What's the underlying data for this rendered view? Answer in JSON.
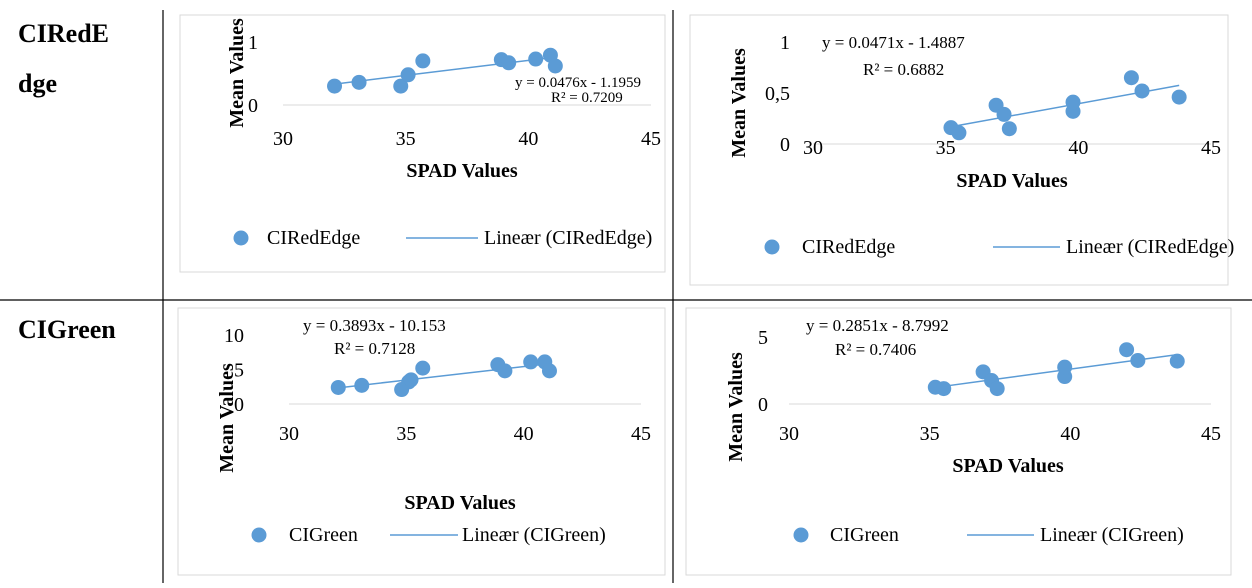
{
  "row_labels": [
    "CIRedE",
    "dge",
    "CIGreen"
  ],
  "colors": {
    "marker": "#5B9BD5",
    "trend": "#5B9BD5",
    "frame": "#d9d9d9",
    "rule": "#000000"
  },
  "chart_data": [
    {
      "type": "scatter",
      "xlabel": "SPAD Values",
      "ylabel": "Mean Values",
      "xlim": [
        30,
        45
      ],
      "ylim": [
        0,
        1
      ],
      "xticks": [
        "30",
        "35",
        "40",
        "45"
      ],
      "yticks": [
        "0",
        "1"
      ],
      "points": [
        [
          32.1,
          0.3
        ],
        [
          33.1,
          0.36
        ],
        [
          34.8,
          0.3
        ],
        [
          35.1,
          0.48
        ],
        [
          35.7,
          0.7
        ],
        [
          38.9,
          0.72
        ],
        [
          39.2,
          0.67
        ],
        [
          40.3,
          0.73
        ],
        [
          40.9,
          0.79
        ],
        [
          41.1,
          0.62
        ]
      ],
      "trend": {
        "slope": 0.0476,
        "intercept": -1.1959,
        "x_range": [
          32.1,
          41.1
        ]
      },
      "equation": "y = 0.0476x - 1.1959",
      "r2": "R² = 0.7209",
      "legend": {
        "marker_label": "CIRedEdge",
        "line_label": "Lineær (CIRedEdge)"
      }
    },
    {
      "type": "scatter",
      "xlabel": "SPAD Values",
      "ylabel": "Mean Values",
      "xlim": [
        30,
        45
      ],
      "ylim": [
        0,
        1
      ],
      "xticks": [
        "30",
        "35",
        "40",
        "45"
      ],
      "yticks": [
        "0",
        "0,5",
        "1"
      ],
      "points": [
        [
          35.2,
          0.16
        ],
        [
          35.5,
          0.11
        ],
        [
          36.9,
          0.38
        ],
        [
          37.2,
          0.29
        ],
        [
          37.4,
          0.15
        ],
        [
          39.8,
          0.32
        ],
        [
          39.8,
          0.41
        ],
        [
          42.0,
          0.65
        ],
        [
          42.4,
          0.52
        ],
        [
          43.8,
          0.46
        ]
      ],
      "trend": {
        "slope": 0.0471,
        "intercept": -1.4887,
        "x_range": [
          35.2,
          43.8
        ]
      },
      "equation": "y = 0.0471x - 1.4887",
      "r2": "R² = 0.6882",
      "legend": {
        "marker_label": "CIRedEdge",
        "line_label": "Lineær (CIRedEdge)"
      }
    },
    {
      "type": "scatter",
      "xlabel": "SPAD Values",
      "ylabel": "Mean Values",
      "xlim": [
        30,
        45
      ],
      "ylim": [
        0,
        10
      ],
      "xticks": [
        "30",
        "35",
        "40",
        "45"
      ],
      "yticks": [
        "0",
        "5",
        "10"
      ],
      "points": [
        [
          32.1,
          2.4
        ],
        [
          33.1,
          2.7
        ],
        [
          34.8,
          2.1
        ],
        [
          35.1,
          3.2
        ],
        [
          35.2,
          3.5
        ],
        [
          35.7,
          5.2
        ],
        [
          38.9,
          5.7
        ],
        [
          39.2,
          4.8
        ],
        [
          40.3,
          6.1
        ],
        [
          40.9,
          6.1
        ],
        [
          41.1,
          4.8
        ]
      ],
      "trend": {
        "slope": 0.3893,
        "intercept": -10.153,
        "x_range": [
          32.1,
          41.1
        ]
      },
      "equation": "y = 0.3893x - 10.153",
      "r2": "R² = 0.7128",
      "legend": {
        "marker_label": "CIGreen",
        "line_label": "Lineær (CIGreen)"
      }
    },
    {
      "type": "scatter",
      "xlabel": "SPAD Values",
      "ylabel": "Mean Values",
      "xlim": [
        30,
        45
      ],
      "ylim": [
        0,
        5
      ],
      "xticks": [
        "30",
        "35",
        "40",
        "45"
      ],
      "yticks": [
        "0",
        "5"
      ],
      "points": [
        [
          35.2,
          1.25
        ],
        [
          35.5,
          1.15
        ],
        [
          36.9,
          2.4
        ],
        [
          37.2,
          1.75
        ],
        [
          37.4,
          1.15
        ],
        [
          39.8,
          2.05
        ],
        [
          39.8,
          2.75
        ],
        [
          42.0,
          4.05
        ],
        [
          42.4,
          3.25
        ],
        [
          43.8,
          3.2
        ]
      ],
      "trend": {
        "slope": 0.2851,
        "intercept": -8.7992,
        "x_range": [
          35.2,
          43.8
        ]
      },
      "equation": "y = 0.2851x - 8.7992",
      "r2": "R² = 0.7406",
      "legend": {
        "marker_label": "CIGreen",
        "line_label": "Lineær (CIGreen)"
      }
    }
  ]
}
